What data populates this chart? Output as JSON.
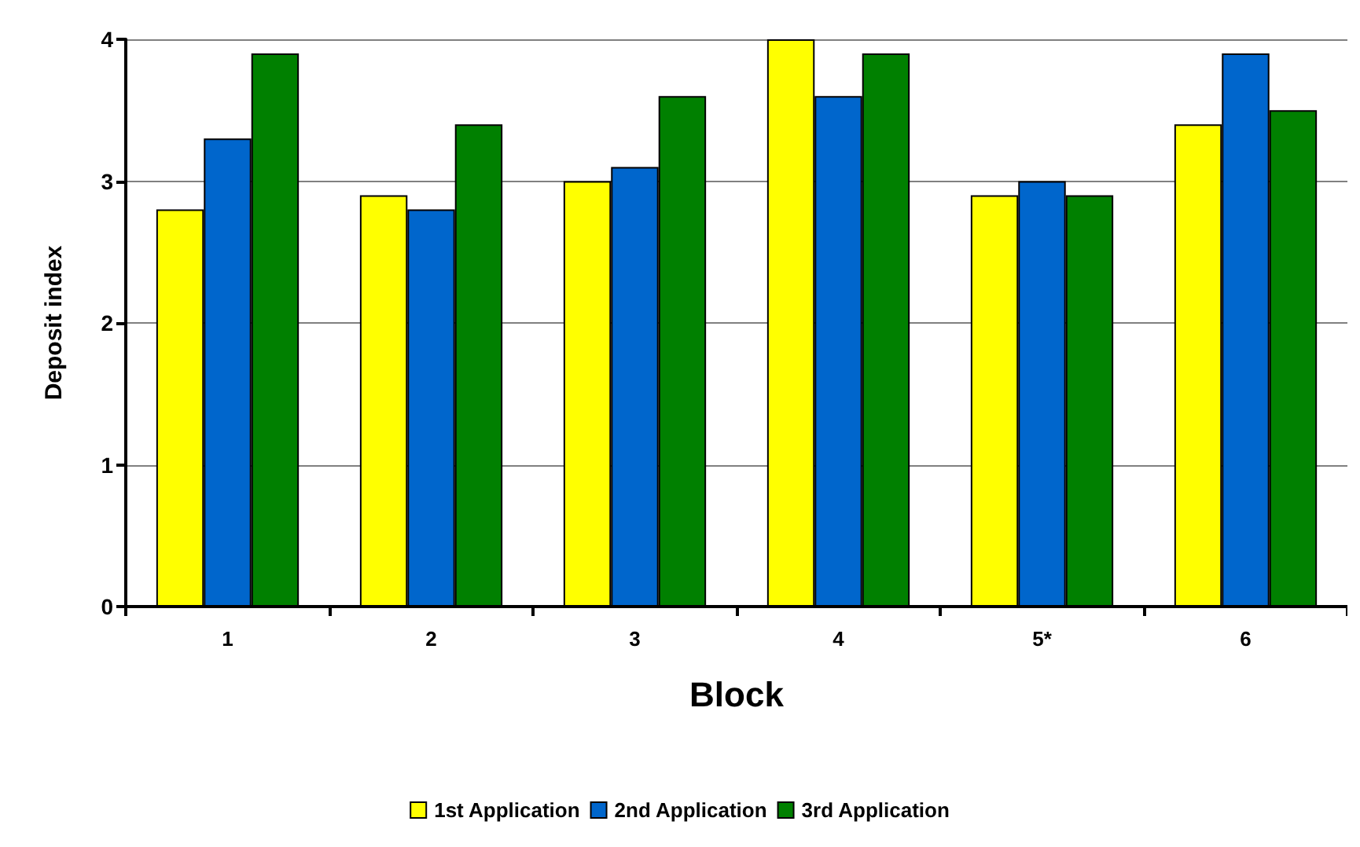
{
  "chart_data": {
    "type": "bar",
    "xlabel": "Block",
    "ylabel": "Deposit index",
    "categories": [
      "1",
      "2",
      "3",
      "4",
      "5*",
      "6"
    ],
    "series": [
      {
        "name": "1st Application",
        "color": "#ffff00",
        "values": [
          2.8,
          2.9,
          3.0,
          4.0,
          2.9,
          3.4
        ]
      },
      {
        "name": "2nd Application",
        "color": "#0066cc",
        "values": [
          3.3,
          2.8,
          3.1,
          3.6,
          3.0,
          3.9
        ]
      },
      {
        "name": "3rd Application",
        "color": "#008000",
        "values": [
          3.9,
          3.4,
          3.6,
          3.9,
          2.9,
          3.5
        ]
      }
    ],
    "ylim": [
      0,
      4
    ],
    "yticks": [
      0,
      1,
      2,
      3,
      4
    ],
    "grid": "y",
    "legend": "bottom"
  }
}
